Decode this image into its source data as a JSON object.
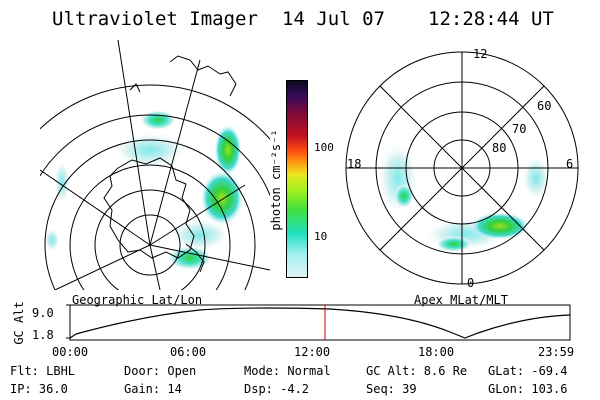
{
  "header": {
    "title": "Ultraviolet Imager",
    "date": "14 Jul 07",
    "time": "12:28:44 UT"
  },
  "left_panel": {
    "label": "Geographic Lat/Lon"
  },
  "right_panel": {
    "label": "Apex MLat/MLT",
    "mlt_labels": [
      "12",
      "18",
      "6",
      "0"
    ],
    "lat_labels": [
      "60",
      "70",
      "80"
    ]
  },
  "colorbar": {
    "unit_label": "photon cm⁻²s⁻¹",
    "ticks": [
      "100",
      "10"
    ],
    "colors": [
      "#0a0a20",
      "#3a0a5a",
      "#7a0a3a",
      "#c01020",
      "#ff5010",
      "#ffa010",
      "#e8e820",
      "#a0f020",
      "#40e040",
      "#20e0c0",
      "#a0f0f0",
      "#e0f4f4"
    ]
  },
  "altitude_plot": {
    "ylabel": "GC Alt",
    "yticks": [
      "9.0",
      "1.8"
    ],
    "xticks": [
      "00:00",
      "06:00",
      "12:00",
      "18:00",
      "23:59"
    ],
    "cursor_time": "12:28:44",
    "cursor_color": "#d00000"
  },
  "footer": {
    "row1": {
      "filter": "Flt: LBHL",
      "door": "Door: Open",
      "mode": "Mode: Normal",
      "gc_alt": "GC Alt: 8.6 Re",
      "glat": "GLat: -69.4"
    },
    "row2": {
      "ip": "IP: 36.0",
      "gain": "Gain: 14",
      "dsp": "Dsp:    -4.2",
      "seq": "Seq: 39",
      "glon": "GLon: 103.6"
    }
  }
}
